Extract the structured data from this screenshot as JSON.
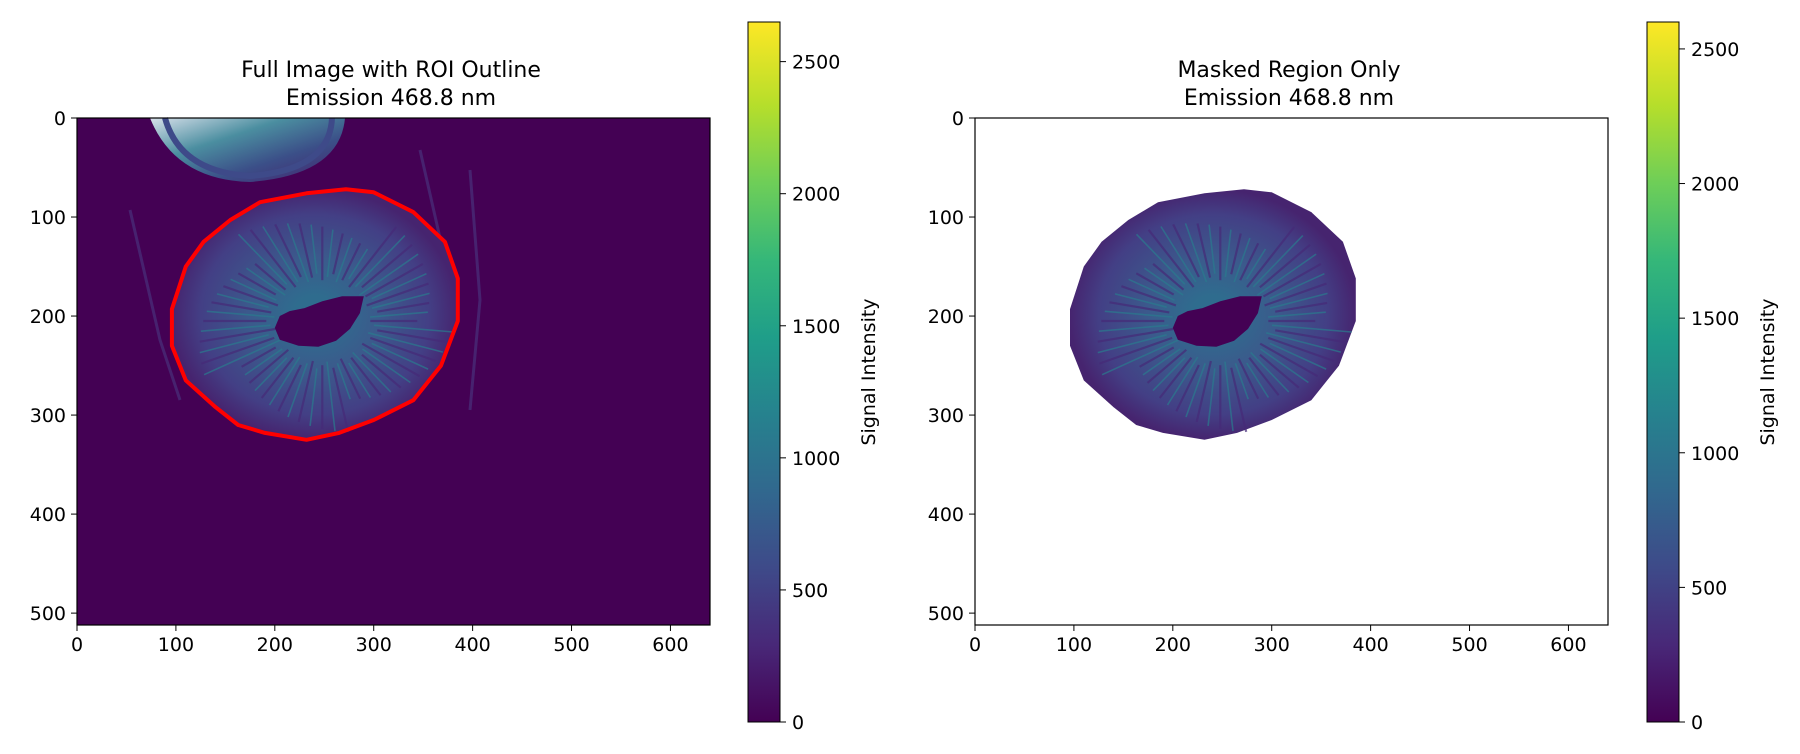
{
  "chart_data": [
    {
      "type": "heatmap",
      "title_line1": "Full Image with ROI Outline",
      "title_line2": "Emission 468.8 nm",
      "xlabel": "",
      "ylabel": "",
      "xlim": [
        0,
        640
      ],
      "ylim": [
        512,
        0
      ],
      "xticks": [
        0,
        100,
        200,
        300,
        400,
        500,
        600
      ],
      "yticks": [
        0,
        100,
        200,
        300,
        400,
        500
      ],
      "colormap": "viridis",
      "colorbar": {
        "label": "Signal Intensity",
        "range": [
          0,
          2650
        ],
        "ticks": [
          0,
          500,
          1000,
          1500,
          2000,
          2500
        ]
      },
      "background_color": "#440154",
      "roi_color": "#ff0000",
      "roi_polygon": [
        [
          272,
          72
        ],
        [
          300,
          75
        ],
        [
          340,
          95
        ],
        [
          372,
          125
        ],
        [
          385,
          162
        ],
        [
          385,
          205
        ],
        [
          368,
          250
        ],
        [
          340,
          285
        ],
        [
          300,
          305
        ],
        [
          265,
          318
        ],
        [
          232,
          325
        ],
        [
          190,
          318
        ],
        [
          163,
          310
        ],
        [
          140,
          292
        ],
        [
          110,
          265
        ],
        [
          96,
          230
        ],
        [
          96,
          193
        ],
        [
          110,
          150
        ],
        [
          128,
          125
        ],
        [
          155,
          103
        ],
        [
          185,
          85
        ],
        [
          232,
          76
        ]
      ],
      "pupil_polygon": [
        [
          290,
          180
        ],
        [
          286,
          197
        ],
        [
          276,
          213
        ],
        [
          262,
          225
        ],
        [
          244,
          231
        ],
        [
          224,
          230
        ],
        [
          205,
          224
        ],
        [
          200,
          212
        ],
        [
          205,
          200
        ],
        [
          215,
          195
        ],
        [
          230,
          192
        ],
        [
          248,
          185
        ],
        [
          268,
          180
        ]
      ]
    },
    {
      "type": "heatmap",
      "title_line1": "Masked Region Only",
      "title_line2": "Emission 468.8 nm",
      "xlabel": "",
      "ylabel": "",
      "xlim": [
        0,
        640
      ],
      "ylim": [
        512,
        0
      ],
      "xticks": [
        0,
        100,
        200,
        300,
        400,
        500,
        600
      ],
      "yticks": [
        0,
        100,
        200,
        300,
        400,
        500
      ],
      "colormap": "viridis",
      "colorbar": {
        "label": "Signal Intensity",
        "range": [
          0,
          2600
        ],
        "ticks": [
          0,
          500,
          1000,
          1500,
          2000,
          2500
        ]
      },
      "background_color": "#ffffff"
    }
  ]
}
